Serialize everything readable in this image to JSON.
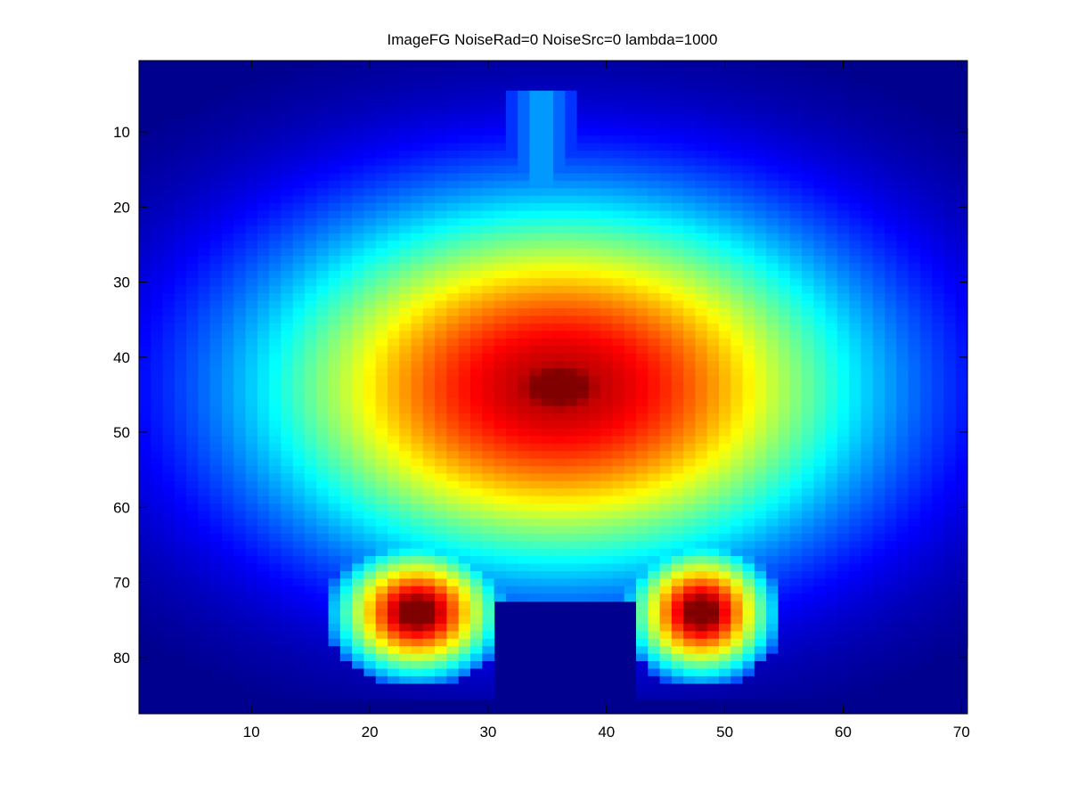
{
  "chart_data": {
    "type": "heatmap",
    "title": "ImageFG NoiseRad=0 NoiseSrc=0 lambda=1000",
    "xlabel": "",
    "ylabel": "",
    "xlim": [
      0.5,
      70.5
    ],
    "ylim": [
      0.5,
      87.5
    ],
    "y_reversed": true,
    "grid": false,
    "legend": "none",
    "colormap": "jet",
    "x_ticks": [
      10,
      20,
      30,
      40,
      50,
      60,
      70
    ],
    "y_ticks": [
      10,
      20,
      30,
      40,
      50,
      60,
      70,
      80
    ],
    "description": "Filled silhouette with value peaking near column 36, row 44; a narrow stem at columns 33-36 from row 5 to 17; two legs at columns 18-30 and 43-53 extending down to about row 84, with a gap (value 0) between columns 30 and 43 below row 73.",
    "peak": {
      "x": 36,
      "y": 44,
      "value": 1.0
    },
    "stem": {
      "x_range": [
        33,
        36
      ],
      "y_range": [
        5,
        17
      ]
    },
    "legs": [
      {
        "x_range": [
          18,
          30
        ],
        "y_range": [
          70,
          84
        ]
      },
      {
        "x_range": [
          43,
          53
        ],
        "y_range": [
          70,
          84
        ]
      }
    ]
  }
}
